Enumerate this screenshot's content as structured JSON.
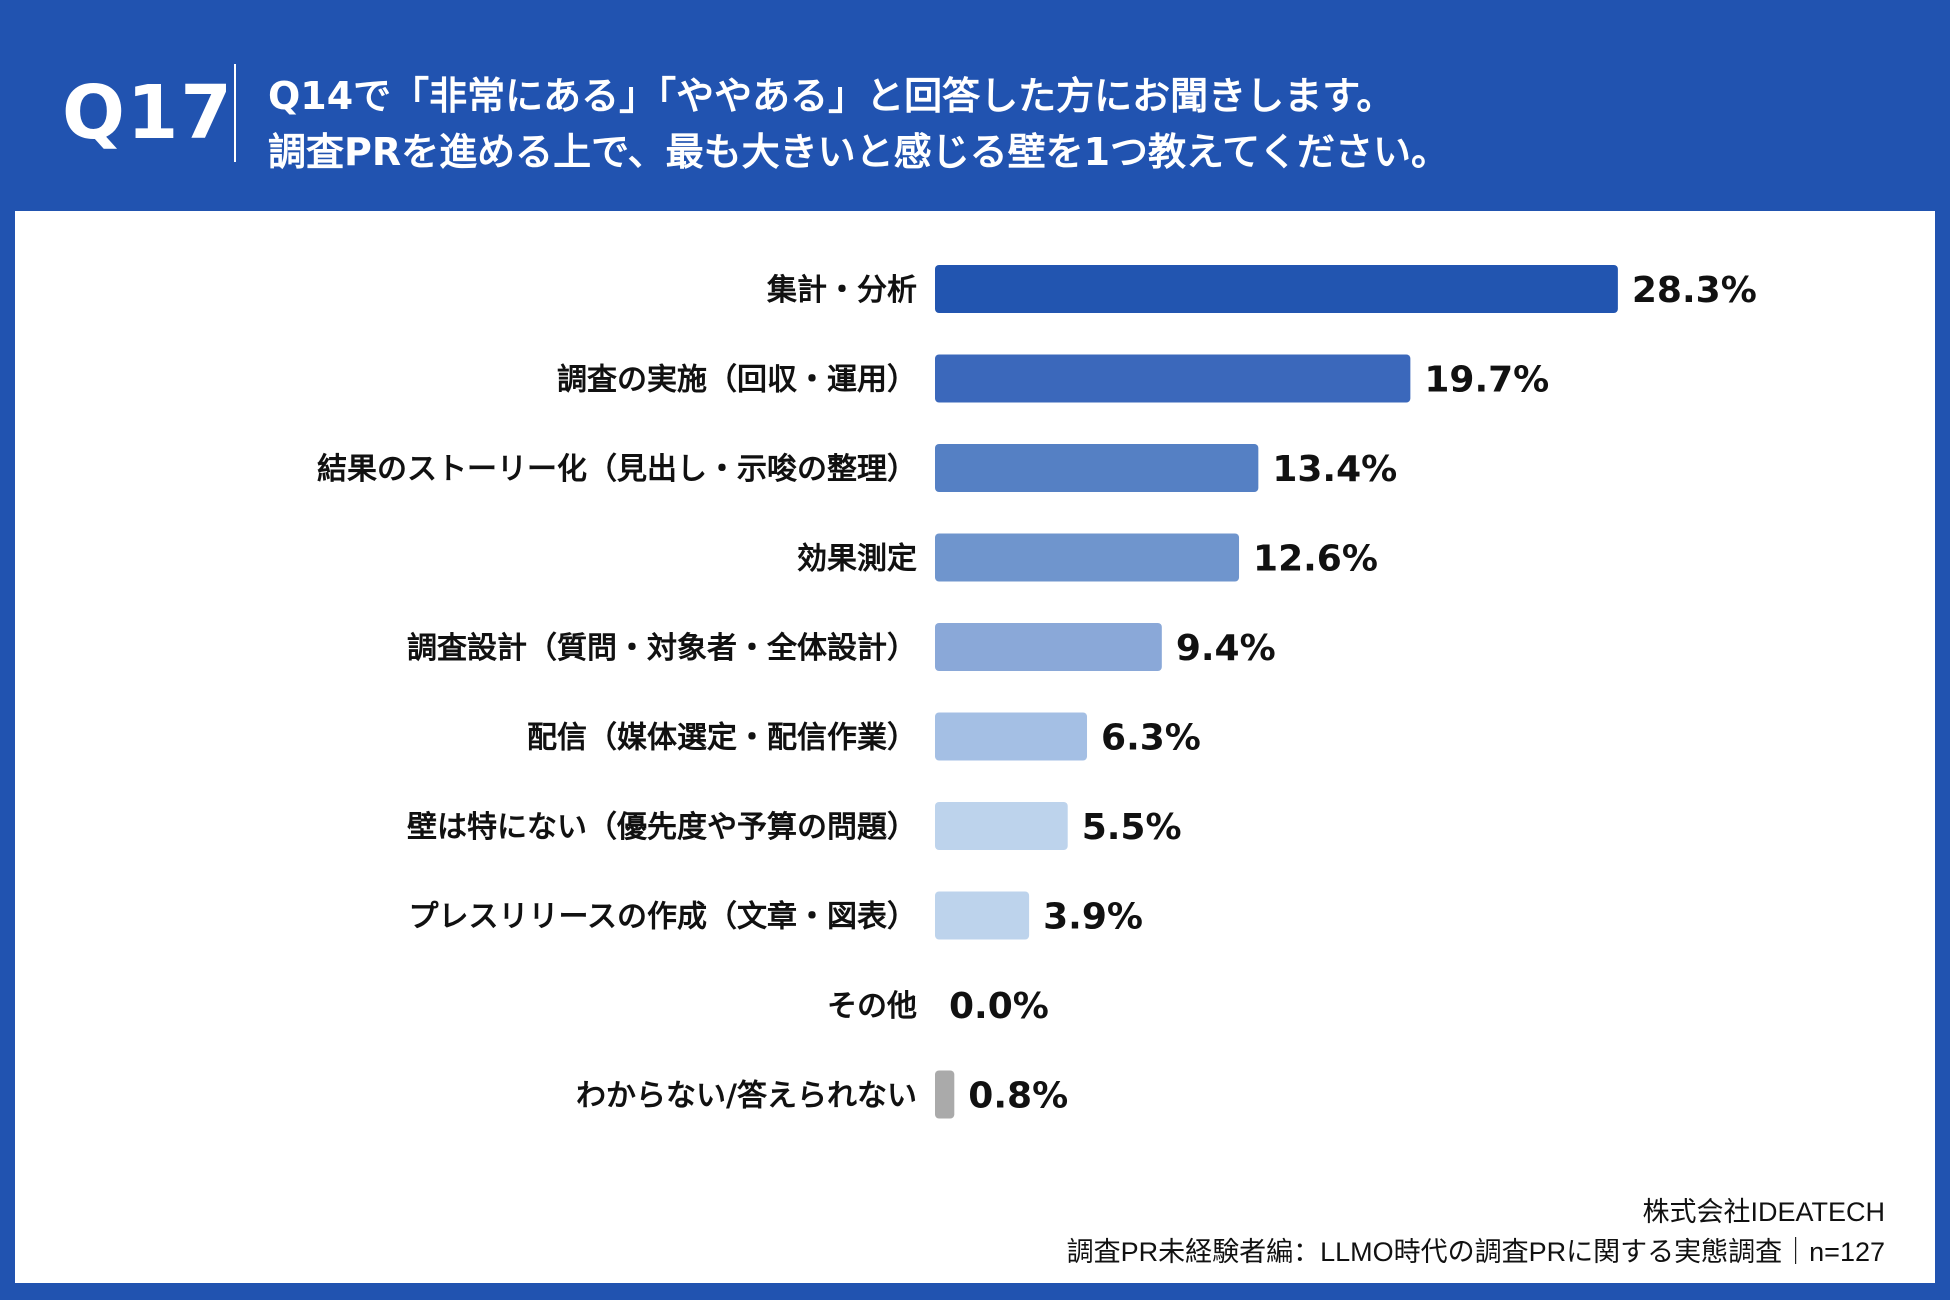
{
  "header": {
    "question_number": "Q17",
    "title_line1": "Q14で「非常にある」「ややある」と回答した方にお聞きします。",
    "title_line2": "調査PRを進める上で、最も大きいと感じる壁を1つ教えてください。",
    "background_color": "#2153b0"
  },
  "chart_data": {
    "type": "bar",
    "orientation": "horizontal",
    "categories": [
      "集計・分析",
      "調査の実施（回収・運用）",
      "結果のストーリー化（見出し・示唆の整理）",
      "効果測定",
      "調査設計（質問・対象者・全体設計）",
      "配信（媒体選定・配信作業）",
      "壁は特にない（優先度や予算の問題）",
      "プレスリリースの作成（文章・図表）",
      "その他",
      "わからない/答えられない"
    ],
    "values": [
      28.3,
      19.7,
      13.4,
      12.6,
      9.4,
      6.3,
      5.5,
      3.9,
      0.0,
      0.8
    ],
    "value_labels": [
      "28.3%",
      "19.7%",
      "13.4%",
      "12.6%",
      "9.4%",
      "6.3%",
      "5.5%",
      "3.9%",
      "0.0%",
      "0.8%"
    ],
    "colors": [
      "#2255b0",
      "#3b68bb",
      "#5580c4",
      "#6f95cd",
      "#8aa8d8",
      "#a4bfe4",
      "#bdd3ec",
      "#bdd3ec",
      "#bdd3ec",
      "#aaaaaa"
    ],
    "unit": "%",
    "grid": false,
    "axes_visible": false
  },
  "footer": {
    "company": "株式会社IDEATECH",
    "source": "調査PR未経験者編：LLMO時代の調査PRに関する実態調査｜n=127"
  }
}
